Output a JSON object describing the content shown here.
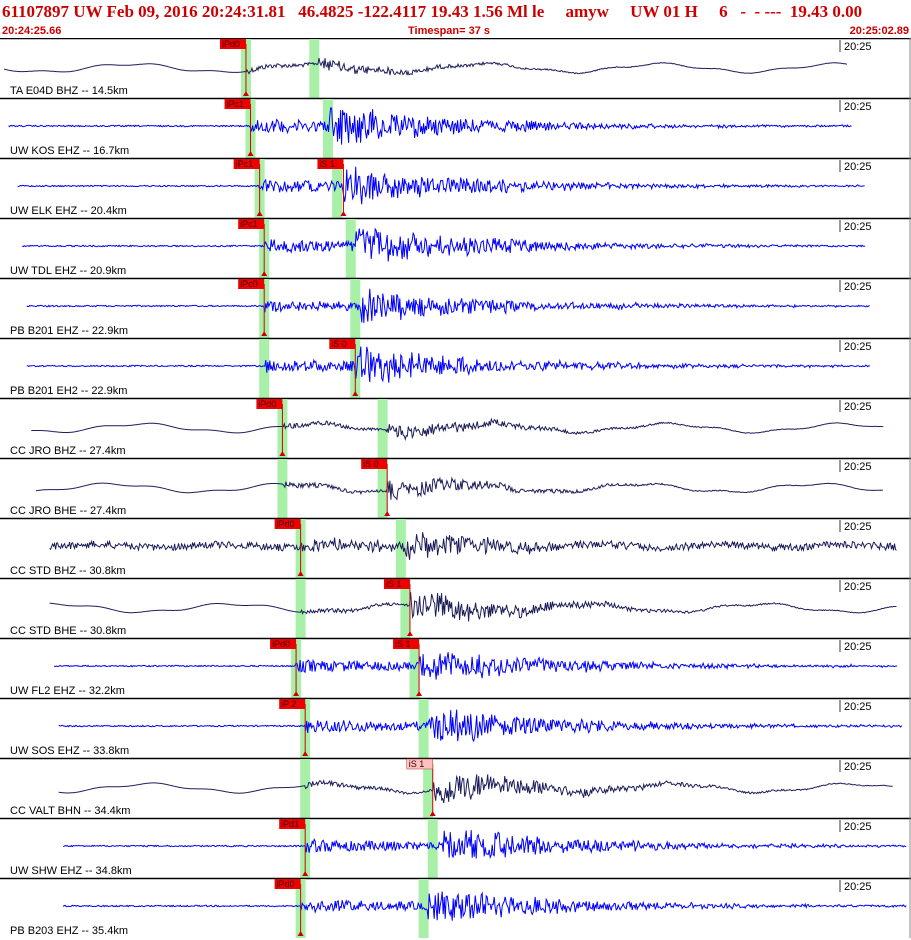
{
  "header": {
    "title": "61107897 UW Feb 09, 2016 20:24:31.81   46.4825 -122.4117 19.43 1.56 Ml le     amyw     UW 01 H     6   -  - ---  19.43 0.00",
    "start_time": "20:24:25.66",
    "timespan": "Timespan=  37 s",
    "end_time": "20:25:02.89"
  },
  "colors": {
    "title": "#cc0000",
    "trace_blue": "#0000ff",
    "trace_dark": "#1e1e5a",
    "pick_flag": "#ee0000",
    "pick_flag_pale": "#ffc0c0",
    "p_window": "#a8f0a8",
    "separator": "#000000"
  },
  "panels": [
    {
      "label": "TA E04D BHZ -- 14.5km",
      "time_tick": "20:25",
      "trace_color": "dark",
      "start": 0.0,
      "end": 0.93,
      "p_phase": "iPd0",
      "p_time": 0.27,
      "s_phase": "",
      "s_time": 0.35,
      "s_window": 0.345,
      "amp": 0.28,
      "style": "long"
    },
    {
      "label": "UW KOS EHZ -- 16.7km",
      "time_tick": "20:25",
      "trace_color": "blue",
      "start": 0.005,
      "end": 0.935,
      "p_phase": "iPc1",
      "p_time": 0.275,
      "s_phase": "",
      "s_time": 0.36,
      "s_window": 0.36,
      "amp": 0.9,
      "style": "short"
    },
    {
      "label": "UW ELK EHZ -- 20.4km",
      "time_tick": "20:25",
      "trace_color": "blue",
      "start": 0.015,
      "end": 0.95,
      "p_phase": "iPc1",
      "p_time": 0.285,
      "s_phase": "iS 1",
      "s_time": 0.377,
      "s_window": 0.37,
      "amp": 0.85,
      "style": "short"
    },
    {
      "label": "UW TDL EHZ -- 20.9km",
      "time_tick": "20:25",
      "trace_color": "blue",
      "start": 0.02,
      "end": 0.95,
      "p_phase": "iPc1",
      "p_time": 0.29,
      "s_phase": "",
      "s_time": 0.39,
      "s_window": 0.385,
      "amp": 0.85,
      "style": "short"
    },
    {
      "label": "PB B201 EHZ -- 22.9km",
      "time_tick": "20:25",
      "trace_color": "blue",
      "start": 0.025,
      "end": 0.955,
      "p_phase": "iPc0",
      "p_time": 0.29,
      "s_phase": "",
      "s_time": 0.395,
      "s_window": 0.39,
      "amp": 0.75,
      "style": "short"
    },
    {
      "label": "PB B201 EH2 -- 22.9km",
      "time_tick": "20:25",
      "trace_color": "blue",
      "start": 0.025,
      "end": 0.955,
      "p_phase": "",
      "p_time": 0.29,
      "s_phase": "iS 0",
      "s_time": 0.39,
      "s_window": 0.39,
      "amp": 0.85,
      "style": "short"
    },
    {
      "label": "CC JRO BHZ -- 27.4km",
      "time_tick": "20:25",
      "trace_color": "dark",
      "start": 0.03,
      "end": 0.97,
      "p_phase": "iPd0",
      "p_time": 0.31,
      "s_phase": "",
      "s_time": 0.425,
      "s_window": 0.42,
      "amp": 0.4,
      "style": "long"
    },
    {
      "label": "CC JRO BHE -- 27.4km",
      "time_tick": "20:25",
      "trace_color": "dark",
      "start": 0.035,
      "end": 0.97,
      "p_phase": "",
      "p_time": 0.31,
      "s_phase": "iS 0",
      "s_time": 0.425,
      "s_window": 0.42,
      "amp": 0.45,
      "style": "long"
    },
    {
      "label": "CC STD BHZ -- 30.8km",
      "time_tick": "20:25",
      "trace_color": "dark",
      "start": 0.05,
      "end": 0.985,
      "p_phase": "iPd0",
      "p_time": 0.33,
      "s_phase": "",
      "s_time": 0.445,
      "s_window": 0.44,
      "amp": 0.7,
      "style": "noisy"
    },
    {
      "label": "CC STD BHE -- 30.8km",
      "time_tick": "20:25",
      "trace_color": "dark",
      "start": 0.05,
      "end": 0.985,
      "p_phase": "",
      "p_time": 0.33,
      "s_phase": "iS 1",
      "s_time": 0.45,
      "s_window": 0.445,
      "amp": 0.75,
      "style": "long"
    },
    {
      "label": "UW FL2 EHZ -- 32.2km",
      "time_tick": "20:25",
      "trace_color": "blue",
      "start": 0.055,
      "end": 0.985,
      "p_phase": "iPd0",
      "p_time": 0.325,
      "s_phase": "iS 1",
      "s_time": 0.46,
      "s_window": 0.455,
      "amp": 0.8,
      "style": "short"
    },
    {
      "label": "UW SOS EHZ -- 33.8km",
      "time_tick": "20:25",
      "trace_color": "blue",
      "start": 0.06,
      "end": 0.99,
      "p_phase": "iP 2",
      "p_time": 0.335,
      "s_phase": "",
      "s_time": 0.47,
      "s_window": 0.465,
      "amp": 0.85,
      "style": "short"
    },
    {
      "label": "CC VALT BHN -- 34.4km",
      "time_tick": "20:25",
      "trace_color": "dark",
      "start": 0.06,
      "end": 0.98,
      "p_phase": "",
      "p_time": 0.335,
      "s_phase": "iS 1",
      "s_time": 0.475,
      "s_window": 0.47,
      "amp": 0.85,
      "style": "long",
      "s_pale": true
    },
    {
      "label": "UW SHW EHZ -- 34.8km",
      "time_tick": "20:25",
      "trace_color": "blue",
      "start": 0.065,
      "end": 0.995,
      "p_phase": "iPd1",
      "p_time": 0.335,
      "s_phase": "",
      "s_time": 0.485,
      "s_window": 0.475,
      "amp": 0.85,
      "style": "short"
    },
    {
      "label": "PB B203 EHZ -- 35.4km",
      "time_tick": "20:25",
      "trace_color": "blue",
      "start": 0.065,
      "end": 0.995,
      "p_phase": "iPd0",
      "p_time": 0.33,
      "s_phase": "",
      "s_time": 0.47,
      "s_window": 0.465,
      "amp": 0.8,
      "style": "short"
    }
  ]
}
